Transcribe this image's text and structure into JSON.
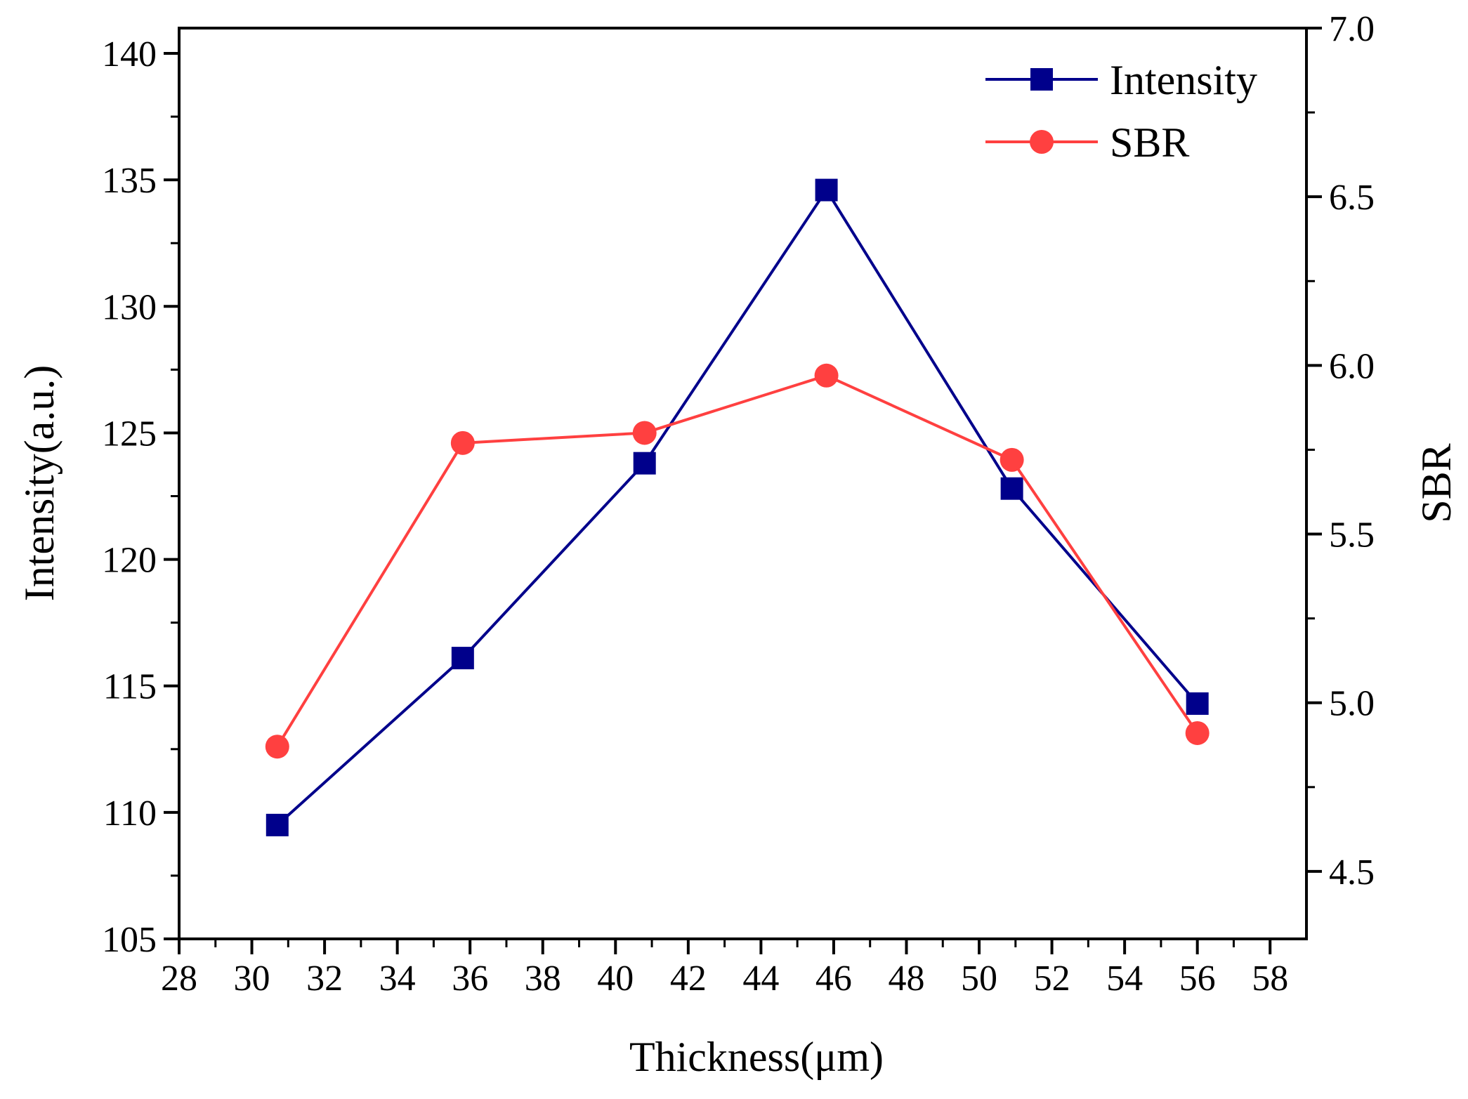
{
  "chart_data": {
    "type": "line",
    "title": "",
    "xlabel": "Thickness(μm)",
    "ylabel": "Intensity(a.u.)",
    "y2label": "SBR",
    "xlim": [
      28,
      59
    ],
    "ylim": [
      105,
      141
    ],
    "y2lim": [
      4.3,
      7.0
    ],
    "x_ticks": [
      28,
      30,
      32,
      34,
      36,
      38,
      40,
      42,
      44,
      46,
      48,
      50,
      52,
      54,
      56,
      58
    ],
    "y_ticks": [
      105,
      110,
      115,
      120,
      125,
      130,
      135,
      140
    ],
    "y2_ticks": [
      "4.5",
      "5.0",
      "5.5",
      "6.0",
      "6.5",
      "7.0"
    ],
    "legend_position": "top-right",
    "series": [
      {
        "name": "Intensity",
        "axis": "left",
        "color": "#00008B",
        "marker": "square",
        "x": [
          30.7,
          35.8,
          40.8,
          45.8,
          50.9,
          56.0
        ],
        "y": [
          109.5,
          116.1,
          123.8,
          134.6,
          122.8,
          114.3
        ]
      },
      {
        "name": "SBR",
        "axis": "right",
        "color": "#FF4040",
        "marker": "circle",
        "x": [
          30.7,
          35.8,
          40.8,
          45.8,
          50.9,
          56.0
        ],
        "y": [
          4.87,
          5.77,
          5.8,
          5.97,
          5.72,
          4.91
        ]
      }
    ]
  }
}
